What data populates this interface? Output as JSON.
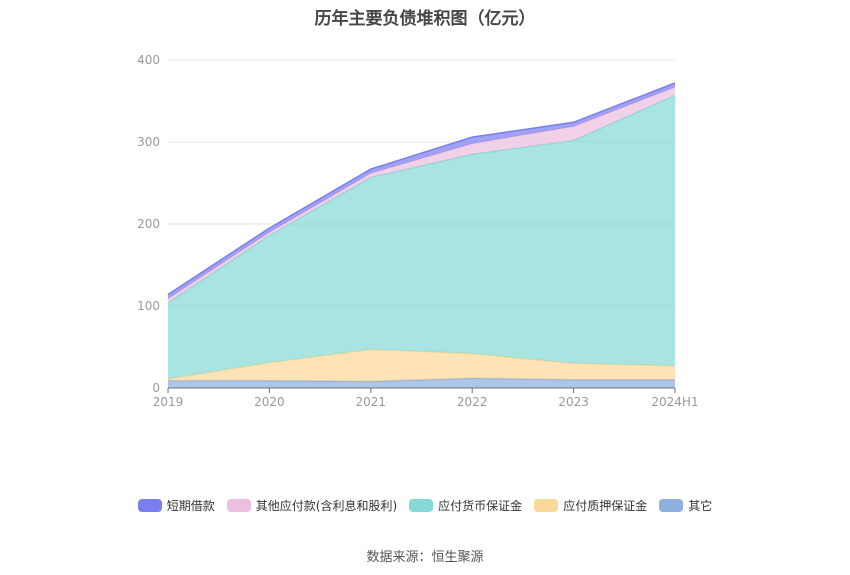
{
  "chart_data": {
    "type": "area",
    "stacked": true,
    "title": "历年主要负债堆积图（亿元）",
    "categories": [
      "2019",
      "2020",
      "2021",
      "2022",
      "2023",
      "2024H1"
    ],
    "ylim": [
      0,
      400
    ],
    "yticks": [
      "0",
      "100",
      "200",
      "300",
      "400"
    ],
    "grid": true,
    "legend_position": "bottom",
    "series": [
      {
        "name": "其它",
        "color": "#8eaedd",
        "values": [
          9,
          9,
          8,
          12,
          10,
          10
        ]
      },
      {
        "name": "应付质押保证金",
        "color": "#fcd89a",
        "values": [
          2,
          22,
          39,
          30,
          20,
          17
        ]
      },
      {
        "name": "应付货币保证金",
        "color": "#86d9d6",
        "values": [
          93,
          155,
          210,
          243,
          272,
          330
        ]
      },
      {
        "name": "其他应付款(含利息和股利)",
        "color": "#ebbfdf",
        "values": [
          5,
          4,
          5,
          13,
          17,
          10
        ]
      },
      {
        "name": "短期借款",
        "color": "#7b7ef0",
        "values": [
          5,
          5,
          5,
          8,
          5,
          5
        ]
      }
    ]
  },
  "footer": {
    "source": "数据来源：恒生聚源"
  }
}
